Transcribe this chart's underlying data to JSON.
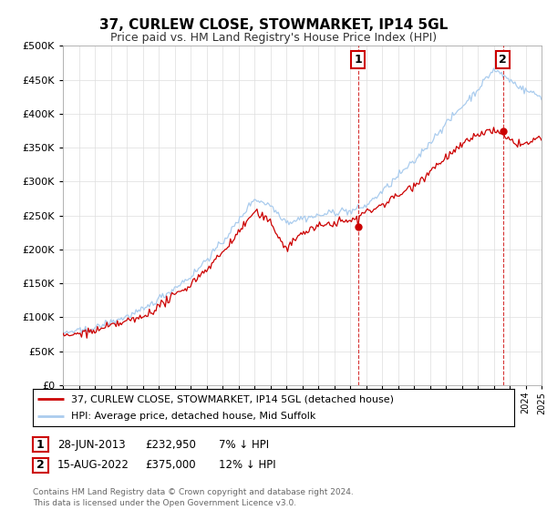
{
  "title": "37, CURLEW CLOSE, STOWMARKET, IP14 5GL",
  "subtitle": "Price paid vs. HM Land Registry's House Price Index (HPI)",
  "ytick_values": [
    0,
    50000,
    100000,
    150000,
    200000,
    250000,
    300000,
    350000,
    400000,
    450000,
    500000
  ],
  "ylim": [
    0,
    500000
  ],
  "hpi_color": "#aaccee",
  "price_color": "#cc0000",
  "m1_idx": 222,
  "m2_idx": 331,
  "legend_line1": "37, CURLEW CLOSE, STOWMARKET, IP14 5GL (detached house)",
  "legend_line2": "HPI: Average price, detached house, Mid Suffolk",
  "tbl_label1": "1",
  "tbl_date1": "28-JUN-2013",
  "tbl_price1": "£232,950",
  "tbl_hpi1": "7% ↓ HPI",
  "tbl_label2": "2",
  "tbl_date2": "15-AUG-2022",
  "tbl_price2": "£375,000",
  "tbl_hpi2": "12% ↓ HPI",
  "footer": "Contains HM Land Registry data © Crown copyright and database right 2024.\nThis data is licensed under the Open Government Licence v3.0.",
  "background_color": "#ffffff",
  "grid_color": "#dddddd"
}
